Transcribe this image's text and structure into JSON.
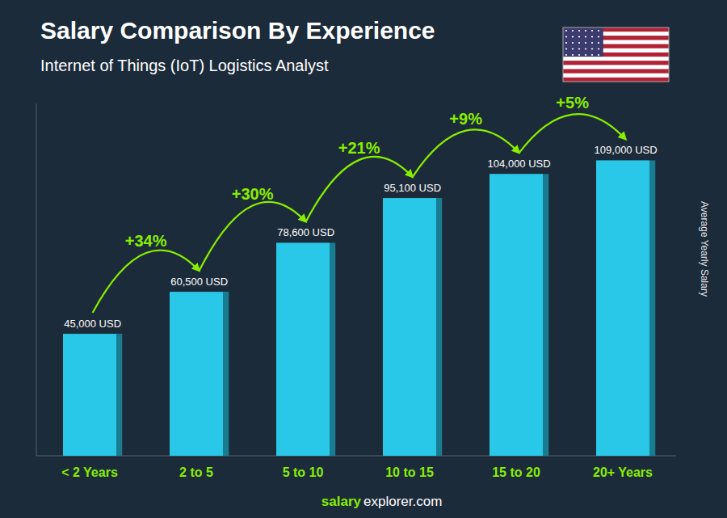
{
  "chart_data": {
    "type": "bar",
    "title": "Salary Comparison By Experience",
    "subtitle": "Internet of Things (IoT) Logistics Analyst",
    "y_label": "Average Yearly Salary",
    "categories": [
      "< 2 Years",
      "2 to 5",
      "5 to 10",
      "10 to 15",
      "15 to 20",
      "20+ Years"
    ],
    "values": [
      45000,
      60500,
      78600,
      95100,
      104000,
      109000
    ],
    "value_labels": [
      "45,000 USD",
      "60,500 USD",
      "78,600 USD",
      "95,100 USD",
      "104,000 USD",
      "109,000 USD"
    ],
    "data_labels": true,
    "annotations": [
      "+34%",
      "+30%",
      "+21%",
      "+9%",
      "+5%"
    ],
    "footer": [
      "salary",
      "explorer.com"
    ],
    "color": "#29c8e8",
    "ylim": [
      0,
      130000
    ],
    "tick_labels": "x",
    "grid": false
  }
}
